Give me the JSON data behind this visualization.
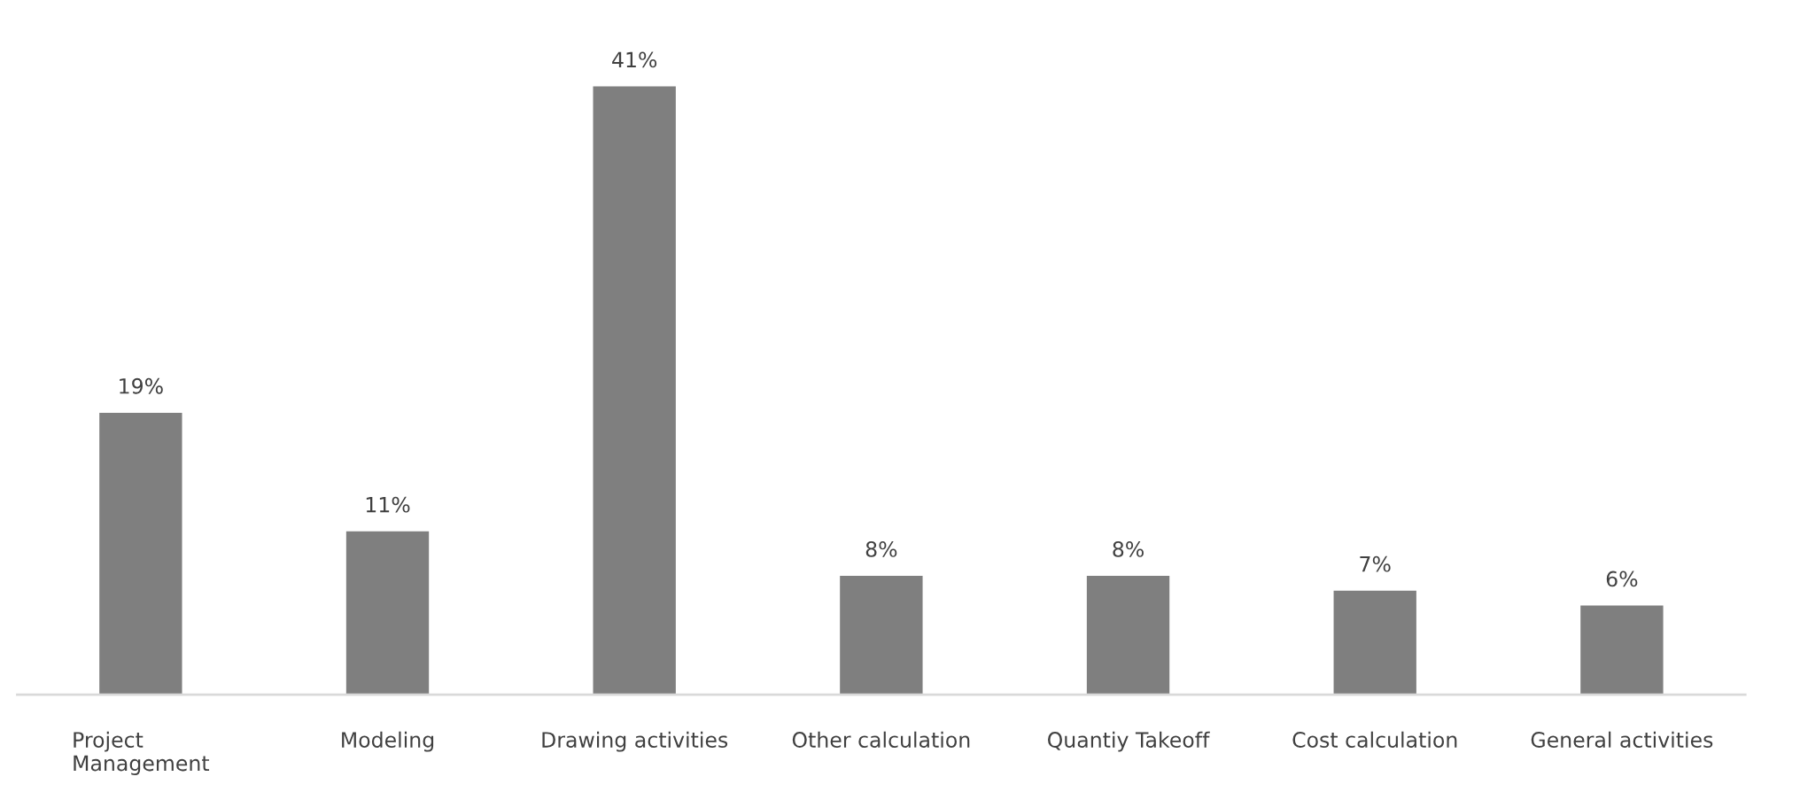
{
  "chart_data": {
    "type": "bar",
    "categories": [
      "Project\nManagement",
      "Modeling",
      "Drawing activities",
      "Other calculation",
      "Quantiy Takeoff",
      "Cost calculation",
      "General activities"
    ],
    "values": [
      19,
      11,
      41,
      8,
      8,
      7,
      6
    ],
    "value_labels": [
      "19%",
      "11%",
      "41%",
      "8%",
      "8%",
      "7%",
      "6%"
    ],
    "color": "#7f7f7f",
    "grid": false,
    "legend": false
  }
}
